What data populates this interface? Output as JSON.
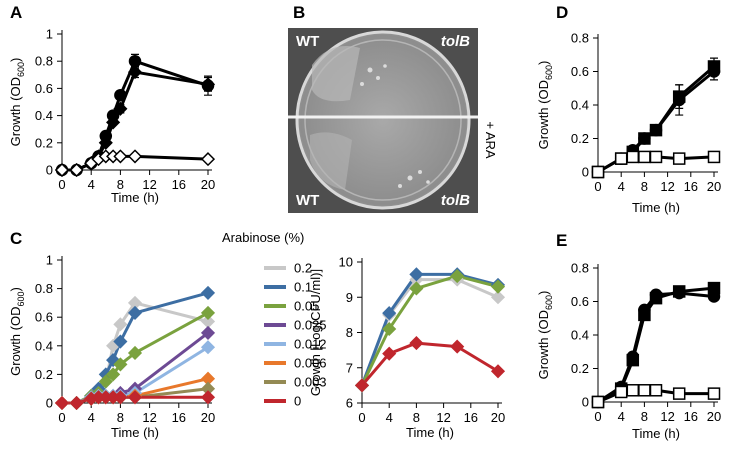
{
  "chart_data": [
    {
      "type": "line",
      "panel": "A",
      "xlabel": "Time (h)",
      "ylabel": [
        "Growth (OD",
        "600",
        ")"
      ],
      "xlim": [
        0,
        20
      ],
      "xticks": [
        0,
        4,
        8,
        12,
        16,
        20
      ],
      "ylim": [
        0,
        1
      ],
      "yticks": [
        0,
        0.2,
        0.4,
        0.6,
        0.8,
        1
      ],
      "x": [
        0,
        2,
        4,
        5,
        6,
        7,
        8,
        10,
        20
      ],
      "series": [
        {
          "color": "#000000",
          "marker": "circle",
          "filled": true,
          "values": [
            0,
            0,
            0.05,
            0.1,
            0.25,
            0.4,
            0.55,
            0.8,
            0.62
          ],
          "errors": [
            null,
            null,
            null,
            null,
            null,
            null,
            0.03,
            0.05,
            0.07
          ]
        },
        {
          "color": "#000000",
          "marker": "diamond",
          "filled": true,
          "values": [
            0,
            0,
            0.05,
            0.1,
            0.2,
            0.35,
            0.45,
            0.72,
            0.63
          ],
          "errors": [
            null,
            null,
            null,
            null,
            null,
            null,
            0.03,
            0.04,
            0.05
          ]
        },
        {
          "color": "#000000",
          "marker": "diamond",
          "filled": false,
          "values": [
            0,
            0,
            0.05,
            0.08,
            0.1,
            0.1,
            0.1,
            0.1,
            0.08
          ],
          "errors": [
            null,
            null,
            null,
            null,
            null,
            null,
            null,
            null,
            null
          ]
        }
      ]
    },
    {
      "type": "line",
      "panel": "C",
      "xlabel": "Time (h)",
      "ylabel": [
        "Growth (OD",
        "600",
        ")"
      ],
      "xlim": [
        0,
        20
      ],
      "xticks": [
        0,
        4,
        8,
        12,
        16,
        20
      ],
      "ylim": [
        0,
        1
      ],
      "yticks": [
        0,
        0.2,
        0.4,
        0.6,
        0.8,
        1
      ],
      "legend": {
        "title": "Arabinose (%)"
      },
      "x": [
        0,
        2,
        4,
        5,
        6,
        7,
        8,
        10,
        20
      ],
      "series": [
        {
          "name": "0.2",
          "color": "#c8c8c8",
          "marker": "diamond",
          "filled": true,
          "values": [
            0,
            0,
            0.05,
            0.08,
            0.15,
            0.4,
            0.55,
            0.7,
            0.57
          ]
        },
        {
          "name": "0.1",
          "color": "#3d6ea3",
          "marker": "diamond",
          "filled": true,
          "values": [
            0,
            0,
            0.05,
            0.1,
            0.2,
            0.3,
            0.43,
            0.63,
            0.77
          ]
        },
        {
          "name": "0.05",
          "color": "#7aa23e",
          "marker": "diamond",
          "filled": true,
          "values": [
            0,
            0,
            0.05,
            0.07,
            0.15,
            0.2,
            0.27,
            0.35,
            0.63
          ]
        },
        {
          "name": "0.025",
          "color": "#6d4a94",
          "marker": "diamond",
          "filled": true,
          "values": [
            0,
            0,
            0.04,
            0.05,
            0.05,
            0.05,
            0.07,
            0.1,
            0.49
          ]
        },
        {
          "name": "0.012",
          "color": "#8fb5e2",
          "marker": "diamond",
          "filled": true,
          "values": [
            0,
            0,
            0.04,
            0.05,
            0.05,
            0.05,
            0.05,
            0.07,
            0.39
          ]
        },
        {
          "name": "0.006",
          "color": "#e8782b",
          "marker": "diamond",
          "filled": true,
          "values": [
            0,
            0,
            0.03,
            0.04,
            0.04,
            0.04,
            0.04,
            0.05,
            0.17
          ]
        },
        {
          "name": "0.003",
          "color": "#948a54",
          "marker": "diamond",
          "filled": true,
          "values": [
            0,
            0,
            0.03,
            0.04,
            0.04,
            0.04,
            0.04,
            0.04,
            0.1
          ]
        },
        {
          "name": "0",
          "color": "#c0262d",
          "marker": "diamond",
          "filled": true,
          "values": [
            0,
            0,
            0.03,
            0.04,
            0.04,
            0.04,
            0.04,
            0.04,
            0.04
          ]
        }
      ]
    },
    {
      "type": "line",
      "xlabel": "Time (h)",
      "ylabel": [
        "Growth [Log(CFU/ml)]"
      ],
      "xlim": [
        0,
        20
      ],
      "xticks": [
        0,
        4,
        8,
        12,
        16,
        20
      ],
      "ylim": [
        6,
        10
      ],
      "yticks": [
        6,
        7,
        8,
        9,
        10
      ],
      "x": [
        0,
        4,
        8,
        14,
        20
      ],
      "series": [
        {
          "color": "#c8c8c8",
          "marker": "diamond",
          "filled": true,
          "values": [
            6.5,
            8.5,
            9.5,
            9.5,
            9.0
          ]
        },
        {
          "color": "#3d6ea3",
          "marker": "diamond",
          "filled": true,
          "values": [
            6.5,
            8.55,
            9.65,
            9.65,
            9.35
          ]
        },
        {
          "color": "#7aa23e",
          "marker": "diamond",
          "filled": true,
          "values": [
            6.5,
            8.1,
            9.25,
            9.6,
            9.3
          ]
        },
        {
          "color": "#c0262d",
          "marker": "diamond",
          "filled": true,
          "values": [
            6.5,
            7.4,
            7.7,
            7.6,
            6.9
          ]
        }
      ]
    },
    {
      "type": "line",
      "panel": "D",
      "xlabel": "Time (h)",
      "ylabel": [
        "Growth (OD",
        "600",
        ")"
      ],
      "xlim": [
        0,
        20
      ],
      "xticks": [
        0,
        4,
        8,
        12,
        16,
        20
      ],
      "ylim": [
        0,
        0.8
      ],
      "yticks": [
        0,
        0.2,
        0.4,
        0.6,
        0.8
      ],
      "x": [
        0,
        4,
        6,
        8,
        10,
        14,
        20
      ],
      "series": [
        {
          "color": "#000000",
          "marker": "circle",
          "filled": true,
          "values": [
            0,
            0.08,
            0.13,
            0.2,
            0.25,
            0.43,
            0.6
          ],
          "errors": [
            null,
            null,
            null,
            0.03,
            0.02,
            0.09,
            0.05
          ]
        },
        {
          "color": "#000000",
          "marker": "square",
          "filled": true,
          "values": [
            0,
            0.08,
            0.12,
            0.2,
            0.25,
            0.45,
            0.63
          ],
          "errors": [
            null,
            null,
            null,
            0.02,
            0.02,
            0.07,
            0.05
          ]
        },
        {
          "color": "#000000",
          "marker": "square",
          "filled": false,
          "values": [
            0,
            0.08,
            0.09,
            0.09,
            0.09,
            0.08,
            0.09
          ],
          "errors": [
            null,
            null,
            null,
            null,
            null,
            null,
            null
          ]
        }
      ]
    },
    {
      "type": "line",
      "panel": "E",
      "xlabel": "Time (h)",
      "ylabel": [
        "Growth (OD",
        "600",
        ")"
      ],
      "xlim": [
        0,
        20
      ],
      "xticks": [
        0,
        4,
        8,
        12,
        16,
        20
      ],
      "ylim": [
        0,
        0.8
      ],
      "yticks": [
        0,
        0.2,
        0.4,
        0.6,
        0.8
      ],
      "x": [
        0,
        4,
        6,
        8,
        10,
        14,
        20
      ],
      "series": [
        {
          "color": "#000000",
          "marker": "circle",
          "filled": true,
          "values": [
            0,
            0.09,
            0.27,
            0.55,
            0.64,
            0.65,
            0.63
          ]
        },
        {
          "color": "#000000",
          "marker": "square",
          "filled": true,
          "values": [
            0,
            0.08,
            0.25,
            0.52,
            0.62,
            0.66,
            0.68
          ]
        },
        {
          "color": "#000000",
          "marker": "square",
          "filled": false,
          "values": [
            0,
            0.06,
            0.07,
            0.07,
            0.07,
            0.05,
            0.05
          ]
        }
      ]
    }
  ],
  "photo_panel": {
    "panel": "B",
    "labels": [
      "WT",
      "tolB",
      "WT",
      "tolB"
    ],
    "side_label": "+ ARA"
  }
}
